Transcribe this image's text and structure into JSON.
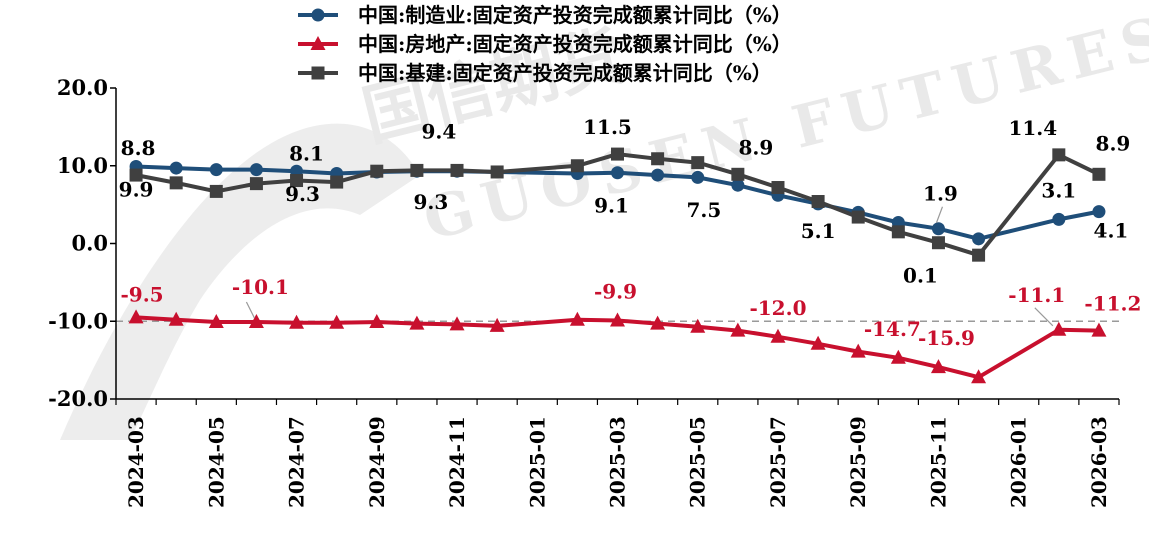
{
  "chart_data": {
    "type": "line",
    "title": "",
    "xlabel": "",
    "ylabel": "",
    "ylim": [
      -20,
      20
    ],
    "yticks": [
      "20.0",
      "10.0",
      "0.0",
      "-10.0",
      "-20.0"
    ],
    "ytick_values": [
      20,
      10,
      0,
      -10,
      -20
    ],
    "ytick_colors": [
      "#000000",
      "#000000",
      "#000000",
      "#c8102e",
      "#c8102e"
    ],
    "grid": "horizontal dashed at -10",
    "x": [
      "2024-03",
      "2024-04",
      "2024-05",
      "2024-06",
      "2024-07",
      "2024-08",
      "2024-09",
      "2024-10",
      "2024-11",
      "2024-12",
      "2025-01",
      "2025-02",
      "2025-03",
      "2025-04",
      "2025-05",
      "2025-06",
      "2025-07",
      "2025-08",
      "2025-09",
      "2025-10",
      "2025-11",
      "2025-12",
      "2026-01",
      "2026-02",
      "2026-03"
    ],
    "x_tick_labels": [
      "2024-03",
      "2024-05",
      "2024-07",
      "2024-09",
      "2024-11",
      "2025-01",
      "2025-03",
      "2025-05",
      "2025-07",
      "2025-09",
      "2025-11",
      "2026-01",
      "2026-03"
    ],
    "legend_position": "top-center",
    "series": [
      {
        "name": "中国:制造业:固定资产投资完成额累计同比（%）",
        "color": "#1f4e79",
        "marker": "circle",
        "values": [
          9.9,
          9.7,
          9.5,
          9.5,
          9.3,
          9.0,
          9.2,
          9.3,
          9.3,
          9.2,
          null,
          9.0,
          9.1,
          8.8,
          8.5,
          7.5,
          6.2,
          5.1,
          4.0,
          2.7,
          1.9,
          0.6,
          null,
          3.1,
          4.1
        ]
      },
      {
        "name": "中国:房地产:固定资产投资完成额累计同比（%）",
        "color": "#c8102e",
        "marker": "triangle",
        "values": [
          -9.5,
          -9.8,
          -10.1,
          -10.1,
          -10.2,
          -10.2,
          -10.1,
          -10.3,
          -10.4,
          -10.6,
          null,
          -9.8,
          -9.9,
          -10.3,
          -10.7,
          -11.2,
          -12.0,
          -12.9,
          -13.9,
          -14.7,
          -15.9,
          -17.2,
          null,
          -11.1,
          -11.2
        ]
      },
      {
        "name": "中国:基建:固定资产投资完成额累计同比（%）",
        "color": "#404040",
        "marker": "square",
        "values": [
          8.8,
          7.8,
          6.7,
          7.7,
          8.1,
          7.9,
          9.3,
          9.4,
          9.4,
          9.2,
          null,
          10.0,
          11.5,
          10.9,
          10.4,
          8.9,
          7.2,
          5.4,
          3.4,
          1.5,
          0.1,
          -1.5,
          null,
          11.4,
          8.9
        ]
      }
    ],
    "data_labels": [
      {
        "text": "8.8",
        "series": 2,
        "i": 0,
        "dx": 2,
        "dy": -20
      },
      {
        "text": "9.9",
        "series": 0,
        "i": 0,
        "dx": 0,
        "dy": 30
      },
      {
        "text": "8.1",
        "series": 2,
        "i": 4,
        "dx": 10,
        "dy": -20
      },
      {
        "text": "9.3",
        "series": 0,
        "i": 4,
        "dx": 6,
        "dy": 30
      },
      {
        "text": "9.4",
        "series": 2,
        "i": 7,
        "dx": 22,
        "dy": -32
      },
      {
        "text": "9.3",
        "series": 0,
        "i": 7,
        "dx": 14,
        "dy": 38
      },
      {
        "text": "11.5",
        "series": 2,
        "i": 12,
        "dx": -10,
        "dy": -20
      },
      {
        "text": "9.1",
        "series": 0,
        "i": 12,
        "dx": -6,
        "dy": 40
      },
      {
        "text": "8.9",
        "series": 2,
        "i": 15,
        "dx": 18,
        "dy": -20
      },
      {
        "text": "7.5",
        "series": 0,
        "i": 15,
        "dx": -34,
        "dy": 32
      },
      {
        "text": "5.1",
        "series": 0,
        "i": 17,
        "dx": 0,
        "dy": 34
      },
      {
        "text": "1.9",
        "series": 0,
        "i": 20,
        "dx": 2,
        "dy": -28
      },
      {
        "text": "0.1",
        "series": 2,
        "i": 20,
        "dx": -18,
        "dy": 40
      },
      {
        "text": "11.4",
        "series": 2,
        "i": 23,
        "dx": -26,
        "dy": -20
      },
      {
        "text": "3.1",
        "series": 0,
        "i": 23,
        "dx": 0,
        "dy": -22
      },
      {
        "text": "8.9",
        "series": 2,
        "i": 24,
        "dx": 14,
        "dy": -24
      },
      {
        "text": "4.1",
        "series": 0,
        "i": 24,
        "dx": 12,
        "dy": 26
      },
      {
        "text": "-9.5",
        "series": 1,
        "i": 0,
        "dx": 6,
        "dy": -16
      },
      {
        "text": "-10.1",
        "series": 1,
        "i": 3,
        "dx": 4,
        "dy": -28
      },
      {
        "text": "-9.9",
        "series": 1,
        "i": 12,
        "dx": -2,
        "dy": -22
      },
      {
        "text": "-12.0",
        "series": 1,
        "i": 16,
        "dx": 0,
        "dy": -22
      },
      {
        "text": "-14.7",
        "series": 1,
        "i": 19,
        "dx": -6,
        "dy": -22
      },
      {
        "text": "-15.9",
        "series": 1,
        "i": 20,
        "dx": 8,
        "dy": -22
      },
      {
        "text": "-11.1",
        "series": 1,
        "i": 23,
        "dx": -22,
        "dy": -28
      },
      {
        "text": "-11.2",
        "series": 1,
        "i": 24,
        "dx": 14,
        "dy": -20
      }
    ]
  },
  "watermark": {
    "text": "GUOSEN FUTURES CO",
    "chinese": "国信期货"
  }
}
